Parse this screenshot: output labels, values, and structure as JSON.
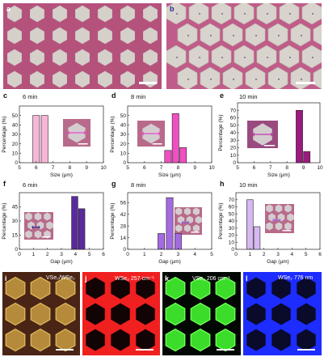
{
  "panels": {
    "a": {
      "label": "a"
    },
    "b": {
      "label": "b"
    },
    "c": {
      "label": "c",
      "time": "6 min"
    },
    "d": {
      "label": "d",
      "time": "8 min"
    },
    "e": {
      "label": "e",
      "time": "10 min"
    },
    "f": {
      "label": "f",
      "time": "6 min"
    },
    "g": {
      "label": "g",
      "time": "8 min"
    },
    "h": {
      "label": "h",
      "time": "10 min"
    },
    "i": {
      "label": "i",
      "title": "VSe₂/WSe₂"
    },
    "j": {
      "label": "j",
      "title": "WSe₂ 257 cm⁻¹"
    },
    "k": {
      "label": "k",
      "title": "VSe₂ 206 cm⁻¹"
    },
    "l": {
      "label": "l",
      "title": "WSe₂ 776 nm"
    }
  },
  "colors": {
    "pink_light": "#f7b6d8",
    "pink_mid": "#f04fc2",
    "magenta_dark": "#9b1a7e",
    "purple_dark": "#5a2a9c",
    "purple_mid": "#a46ae0",
    "purple_light": "#d7b8f2",
    "substrate": "#b5527c",
    "flake": "#d9d4cf"
  },
  "chart_data": [
    {
      "id": "c",
      "type": "bar",
      "title": "6 min",
      "xlabel": "Size (μm)",
      "ylabel": "Percentage (%)",
      "xlim": [
        5,
        10
      ],
      "ylim": [
        0,
        60
      ],
      "xticks": [
        5,
        6,
        7,
        8,
        9,
        10
      ],
      "yticks": [
        0,
        10,
        20,
        30,
        40,
        50
      ],
      "x": [
        6.0,
        6.5
      ],
      "values": [
        50,
        50
      ],
      "width": 0.4,
      "color": "#f7b6d8"
    },
    {
      "id": "d",
      "type": "bar",
      "title": "8 min",
      "xlabel": "Size (μm)",
      "ylabel": "Percentage (%)",
      "xlim": [
        5,
        10
      ],
      "ylim": [
        0,
        60
      ],
      "xticks": [
        5,
        6,
        7,
        8,
        9,
        10
      ],
      "yticks": [
        0,
        10,
        20,
        30,
        40,
        50
      ],
      "x": [
        7.4,
        7.85,
        8.3
      ],
      "values": [
        13,
        52,
        16
      ],
      "width": 0.4,
      "colors": [
        "#f04fc2",
        "#f04fc2",
        "#f04fc2"
      ]
    },
    {
      "id": "e",
      "type": "bar",
      "title": "10 min",
      "xlabel": "Size (μm)",
      "ylabel": "Percentage (%)",
      "xlim": [
        5,
        10
      ],
      "ylim": [
        0,
        80
      ],
      "xticks": [
        5,
        6,
        7,
        8,
        9,
        10
      ],
      "yticks": [
        0,
        10,
        20,
        30,
        40,
        50,
        60,
        70
      ],
      "x": [
        8.75,
        9.2
      ],
      "values": [
        70,
        15
      ],
      "width": 0.4,
      "colors": [
        "#9b1a7e",
        "#9b1a7e"
      ]
    },
    {
      "id": "f",
      "type": "bar",
      "title": "6 min",
      "xlabel": "Gap (μm)",
      "ylabel": "Percentage (%)",
      "xlim": [
        0,
        6
      ],
      "ylim": [
        0,
        60
      ],
      "xticks": [
        0,
        1,
        2,
        3,
        4,
        5,
        6
      ],
      "yticks": [
        0,
        15,
        30,
        45
      ],
      "x": [
        3.95,
        4.45
      ],
      "values": [
        56,
        43
      ],
      "width": 0.45,
      "color": "#5a2a9c"
    },
    {
      "id": "g",
      "type": "bar",
      "title": "8 min",
      "xlabel": "Gap (μm)",
      "ylabel": "Percentage (%)",
      "xlim": [
        0,
        5
      ],
      "ylim": [
        0,
        68
      ],
      "xticks": [
        0,
        1,
        2,
        3,
        4,
        5
      ],
      "yticks": [
        0,
        14,
        28,
        42,
        56
      ],
      "x": [
        2.0,
        2.5,
        3.0
      ],
      "values": [
        19,
        62,
        19
      ],
      "width": 0.4,
      "color": "#a46ae0"
    },
    {
      "id": "h",
      "type": "bar",
      "title": "10 min",
      "xlabel": "Gap (μm)",
      "ylabel": "Percentage (%)",
      "xlim": [
        0,
        6
      ],
      "ylim": [
        0,
        80
      ],
      "xticks": [
        0,
        1,
        2,
        3,
        4,
        5,
        6
      ],
      "yticks": [
        0,
        10,
        20,
        30,
        40,
        50,
        60,
        70
      ],
      "x": [
        1.0,
        1.5
      ],
      "values": [
        70,
        32
      ],
      "width": 0.45,
      "color": "#d7b8f2"
    }
  ]
}
